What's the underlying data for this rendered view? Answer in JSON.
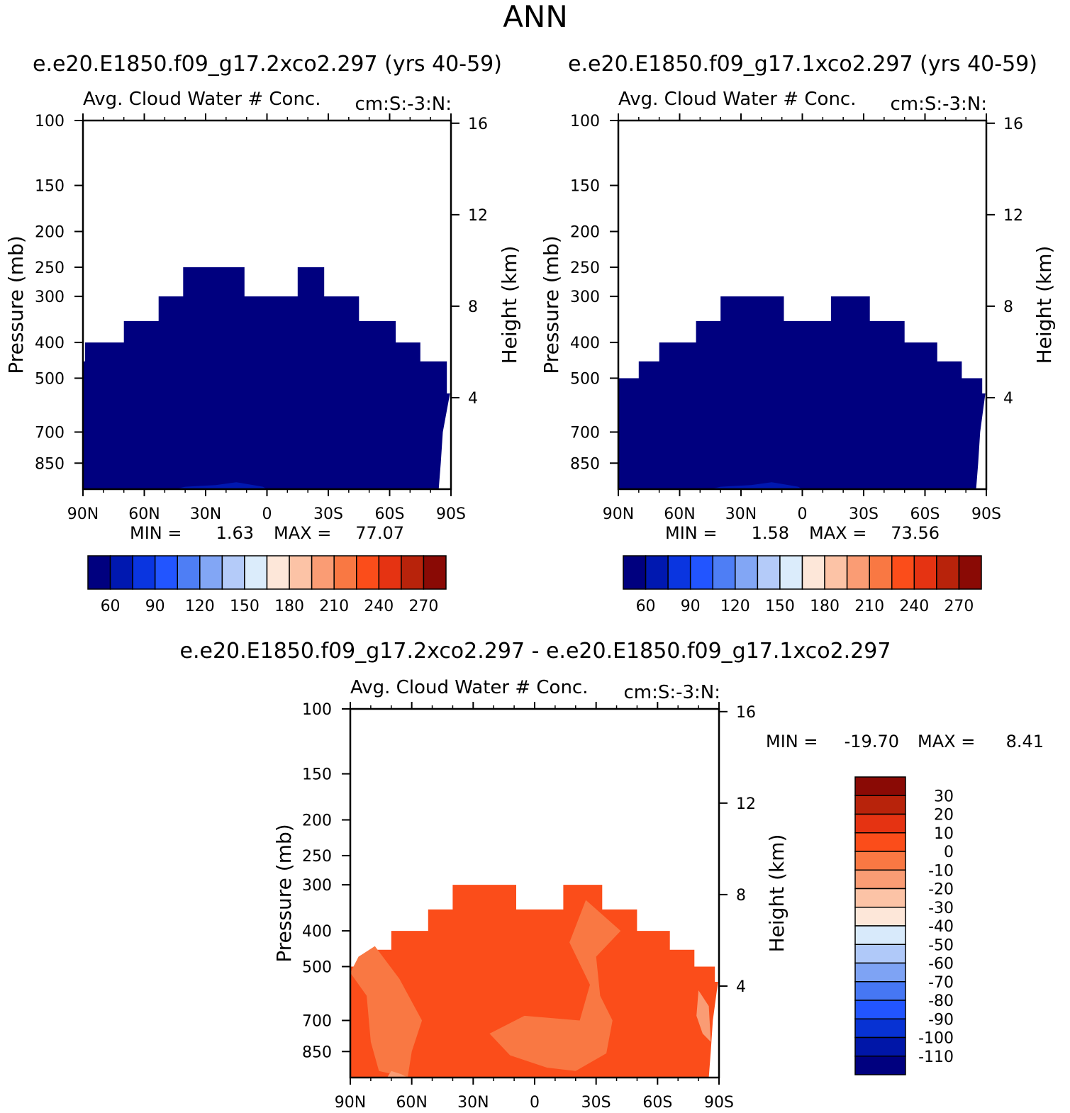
{
  "chart_data": {
    "type": "contour",
    "super_title": "ANN",
    "panels": [
      {
        "id": "panel1",
        "case_title": "e.e20.E1850.f09_g17.2xco2.297 (yrs 40-59)",
        "var_title": "Avg. Cloud Water # Conc.",
        "units": "cm:S:-3:N:",
        "ylabel_left": "Pressure (mb)",
        "ylabel_right": "Height (km)",
        "pressure_ticks": [
          100,
          150,
          200,
          250,
          300,
          400,
          500,
          700,
          850
        ],
        "height_ticks": [
          16,
          12,
          8,
          4
        ],
        "lat_ticks": [
          "90N",
          "60N",
          "30N",
          "0",
          "30S",
          "60S",
          "90S"
        ],
        "stats": {
          "min_label": "MIN =",
          "min": "1.63",
          "max_label": "MAX =",
          "max": "77.07"
        },
        "cloud_top": [
          {
            "lat0": 90,
            "lat1": 89,
            "p": 450
          },
          {
            "lat0": 89,
            "lat1": 70,
            "p": 400
          },
          {
            "lat0": 70,
            "lat1": 53,
            "p": 350
          },
          {
            "lat0": 53,
            "lat1": 41,
            "p": 300
          },
          {
            "lat0": 41,
            "lat1": 11,
            "p": 250
          },
          {
            "lat0": 11,
            "lat1": -15,
            "p": 300
          },
          {
            "lat0": -15,
            "lat1": -28,
            "p": 250
          },
          {
            "lat0": -28,
            "lat1": -45,
            "p": 300
          },
          {
            "lat0": -45,
            "lat1": -63,
            "p": 350
          },
          {
            "lat0": -63,
            "lat1": -75,
            "p": 400
          },
          {
            "lat0": -75,
            "lat1": -88,
            "p": 450
          },
          {
            "lat0": -88,
            "lat1": -90,
            "p": 550
          }
        ],
        "surface_edge": [
          {
            "lat": -89.5,
            "p": 550
          },
          {
            "lat": -86,
            "p": 700
          },
          {
            "lat": -85,
            "p": 850
          },
          {
            "lat": -84,
            "p": 1000
          }
        ],
        "colorbar": {
          "orientation": "horizontal",
          "labels": [
            "60",
            "90",
            "120",
            "150",
            "180",
            "210",
            "240",
            "270"
          ]
        }
      },
      {
        "id": "panel2",
        "case_title": "e.e20.E1850.f09_g17.1xco2.297 (yrs 40-59)",
        "var_title": "Avg. Cloud Water # Conc.",
        "units": "cm:S:-3:N:",
        "ylabel_left": "Pressure (mb)",
        "ylabel_right": "Height (km)",
        "pressure_ticks": [
          100,
          150,
          200,
          250,
          300,
          400,
          500,
          700,
          850
        ],
        "height_ticks": [
          16,
          12,
          8,
          4
        ],
        "lat_ticks": [
          "90N",
          "60N",
          "30N",
          "0",
          "30S",
          "60S",
          "90S"
        ],
        "stats": {
          "min_label": "MIN =",
          "min": "1.58",
          "max_label": "MAX =",
          "max": "73.56"
        },
        "cloud_top": [
          {
            "lat0": 90,
            "lat1": 80,
            "p": 500
          },
          {
            "lat0": 80,
            "lat1": 70,
            "p": 450
          },
          {
            "lat0": 70,
            "lat1": 52,
            "p": 400
          },
          {
            "lat0": 52,
            "lat1": 40,
            "p": 350
          },
          {
            "lat0": 40,
            "lat1": 9,
            "p": 300
          },
          {
            "lat0": 9,
            "lat1": -14,
            "p": 350
          },
          {
            "lat0": -14,
            "lat1": -33,
            "p": 300
          },
          {
            "lat0": -33,
            "lat1": -50,
            "p": 350
          },
          {
            "lat0": -50,
            "lat1": -66,
            "p": 400
          },
          {
            "lat0": -66,
            "lat1": -78,
            "p": 450
          },
          {
            "lat0": -78,
            "lat1": -88,
            "p": 500
          },
          {
            "lat0": -88,
            "lat1": -90,
            "p": 550
          }
        ],
        "surface_edge": [
          {
            "lat": -89.5,
            "p": 550
          },
          {
            "lat": -87,
            "p": 700
          },
          {
            "lat": -86,
            "p": 850
          },
          {
            "lat": -85,
            "p": 1000
          }
        ],
        "colorbar": {
          "orientation": "horizontal",
          "labels": [
            "60",
            "90",
            "120",
            "150",
            "180",
            "210",
            "240",
            "270"
          ]
        }
      },
      {
        "id": "panel3",
        "case_title": "e.e20.E1850.f09_g17.2xco2.297 - e.e20.E1850.f09_g17.1xco2.297",
        "var_title": "Avg. Cloud Water # Conc.",
        "units": "cm:S:-3:N:",
        "ylabel_left": "Pressure (mb)",
        "ylabel_right": "Height (km)",
        "pressure_ticks": [
          100,
          150,
          200,
          250,
          300,
          400,
          500,
          700,
          850
        ],
        "height_ticks": [
          16,
          12,
          8,
          4
        ],
        "lat_ticks": [
          "90N",
          "60N",
          "30N",
          "0",
          "30S",
          "60S",
          "90S"
        ],
        "stats": {
          "min_label": "MIN =",
          "min": "-19.70",
          "max_label": "MAX =",
          "max": "8.41"
        },
        "cloud_top": [
          {
            "lat0": 90,
            "lat1": 80,
            "p": 500
          },
          {
            "lat0": 80,
            "lat1": 70,
            "p": 450
          },
          {
            "lat0": 70,
            "lat1": 52,
            "p": 400
          },
          {
            "lat0": 52,
            "lat1": 40,
            "p": 350
          },
          {
            "lat0": 40,
            "lat1": 9,
            "p": 300
          },
          {
            "lat0": 9,
            "lat1": -14,
            "p": 350
          },
          {
            "lat0": -14,
            "lat1": -33,
            "p": 300
          },
          {
            "lat0": -33,
            "lat1": -50,
            "p": 350
          },
          {
            "lat0": -50,
            "lat1": -66,
            "p": 400
          },
          {
            "lat0": -66,
            "lat1": -78,
            "p": 450
          },
          {
            "lat0": -78,
            "lat1": -88,
            "p": 500
          },
          {
            "lat0": -88,
            "lat1": -90,
            "p": 550
          }
        ],
        "surface_edge": [
          {
            "lat": -89.5,
            "p": 550
          },
          {
            "lat": -87,
            "p": 700
          },
          {
            "lat": -86,
            "p": 850
          },
          {
            "lat": -85,
            "p": 1000
          }
        ],
        "diff_patches": [
          {
            "class": "minus10",
            "pts": [
              [
                90,
                520
              ],
              [
                82,
                600
              ],
              [
                80,
                800
              ],
              [
                76,
                960
              ],
              [
                62,
                1000
              ],
              [
                60,
                850
              ],
              [
                55,
                700
              ],
              [
                66,
                540
              ],
              [
                78,
                440
              ],
              [
                86,
                470
              ]
            ]
          },
          {
            "class": "minus10",
            "pts": [
              [
                -42,
                400
              ],
              [
                -30,
                470
              ],
              [
                -32,
                600
              ],
              [
                -38,
                700
              ],
              [
                -35,
                860
              ],
              [
                -20,
                960
              ],
              [
                -6,
                940
              ],
              [
                12,
                870
              ],
              [
                22,
                760
              ],
              [
                5,
                680
              ],
              [
                -22,
                700
              ],
              [
                -27,
                560
              ],
              [
                -17,
                430
              ],
              [
                -25,
                330
              ]
            ]
          },
          {
            "class": "minus20",
            "pts": [
              [
                -80,
                580
              ],
              [
                -85,
                640
              ],
              [
                -86,
                800
              ],
              [
                -82,
                760
              ],
              [
                -79,
                680
              ]
            ]
          },
          {
            "class": "minus20",
            "pts": [
              [
                70,
                960
              ],
              [
                65,
                980
              ],
              [
                62,
                1000
              ],
              [
                72,
                1000
              ]
            ]
          }
        ],
        "colorbar": {
          "orientation": "vertical",
          "labels": [
            "30",
            "20",
            "10",
            "0",
            "-10",
            "-20",
            "-30",
            "-40",
            "-50",
            "-60",
            "-70",
            "-80",
            "-90",
            "-100",
            "-110"
          ]
        }
      }
    ],
    "colors_abs": [
      "#00007f",
      "#0018b0",
      "#0a35e0",
      "#2255ff",
      "#4e7ef5",
      "#82a6f5",
      "#b4cbf9",
      "#dbecfb",
      "#fde7d9",
      "#fcc3a6",
      "#fa9c74",
      "#f97843",
      "#fb4d1a",
      "#e53312",
      "#b8230b",
      "#8a0a05"
    ],
    "colors_diff": [
      "#00007f",
      "#0016a8",
      "#0732d3",
      "#2255ff",
      "#4677f4",
      "#7ea3f4",
      "#b0c9f9",
      "#d8eafb",
      "#fde7d9",
      "#fcc3a6",
      "#fa9c74",
      "#f97843",
      "#fb4d1a",
      "#e53312",
      "#b8230b",
      "#8a0a05"
    ],
    "fill_abs_index": 0,
    "fill_abs_blob_index": 1,
    "fill_diff_main_index": 12,
    "fill_diff_minus10_index": 11,
    "fill_diff_minus20_index": 10
  }
}
